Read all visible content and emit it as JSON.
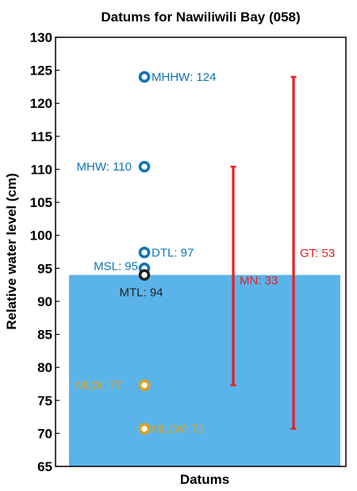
{
  "chart_data": {
    "type": "scatter",
    "title": "Datums for Nawiliwili Bay (058)",
    "xlabel": "Datums",
    "ylabel": "Relative water level (cm)",
    "ylim": [
      65,
      130
    ],
    "yticks": [
      65,
      70,
      75,
      80,
      85,
      90,
      95,
      100,
      105,
      110,
      115,
      120,
      125,
      130
    ],
    "grid": false,
    "legend": "none",
    "fill_level": 94,
    "fill_color": "#5ab4e9",
    "colors": {
      "high": "#0f74b8",
      "mean": "#222222",
      "low": "#e0a21f",
      "range": "#ee1c24"
    },
    "datums": [
      {
        "name": "MHHW",
        "label": "MHHW: 124",
        "value": 124,
        "group": "high"
      },
      {
        "name": "MHW",
        "label": "MHW: 110",
        "value": 110.4,
        "group": "high"
      },
      {
        "name": "DTL",
        "label": "DTL: 97",
        "value": 97.4,
        "group": "high"
      },
      {
        "name": "MSL",
        "label": "MSL: 95",
        "value": 95,
        "group": "high"
      },
      {
        "name": "MTL",
        "label": "MTL: 94",
        "value": 94,
        "group": "mean"
      },
      {
        "name": "MLW",
        "label": "MLW: 77",
        "value": 77.3,
        "group": "low"
      },
      {
        "name": "MLLW",
        "label": "MLLW: 71",
        "value": 70.7,
        "group": "low"
      }
    ],
    "ranges": [
      {
        "name": "MN",
        "label": "MN: 33",
        "low": 77.3,
        "high": 110.4
      },
      {
        "name": "GT",
        "label": "GT: 53",
        "low": 70.7,
        "high": 124
      }
    ]
  }
}
